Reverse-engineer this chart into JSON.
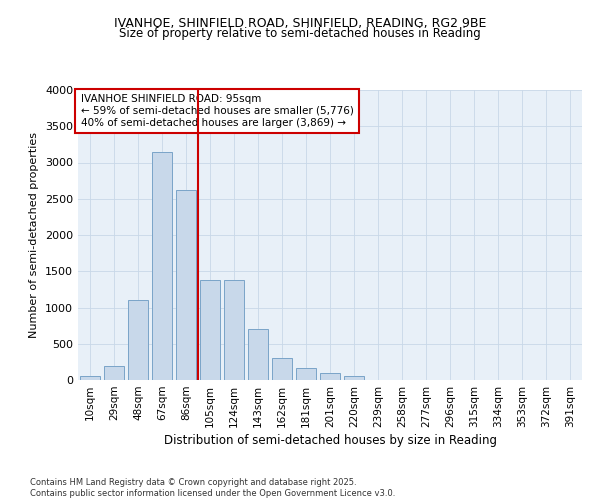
{
  "title_line1": "IVANHOE, SHINFIELD ROAD, SHINFIELD, READING, RG2 9BE",
  "title_line2": "Size of property relative to semi-detached houses in Reading",
  "xlabel": "Distribution of semi-detached houses by size in Reading",
  "ylabel": "Number of semi-detached properties",
  "bar_labels": [
    "10sqm",
    "29sqm",
    "48sqm",
    "67sqm",
    "86sqm",
    "105sqm",
    "124sqm",
    "143sqm",
    "162sqm",
    "181sqm",
    "201sqm",
    "220sqm",
    "239sqm",
    "258sqm",
    "277sqm",
    "296sqm",
    "315sqm",
    "334sqm",
    "353sqm",
    "372sqm",
    "391sqm"
  ],
  "bar_values": [
    50,
    200,
    1100,
    3150,
    2620,
    1380,
    1380,
    700,
    310,
    170,
    100,
    50,
    0,
    0,
    0,
    0,
    0,
    0,
    0,
    0,
    0
  ],
  "bar_color": "#c8d8ea",
  "bar_edge_color": "#7aa4c8",
  "vline_x": 4.5,
  "vline_color": "#cc0000",
  "property_size": "95sqm",
  "property_name": "IVANHOE SHINFIELD ROAD",
  "pct_smaller": "59%",
  "n_smaller": "5,776",
  "pct_larger": "40%",
  "n_larger": "3,869",
  "ylim": [
    0,
    4000
  ],
  "yticks": [
    0,
    500,
    1000,
    1500,
    2000,
    2500,
    3000,
    3500,
    4000
  ],
  "annotation_box_color": "#cc0000",
  "grid_color": "#c8d8e8",
  "bg_color": "#e8f0f8",
  "footer_line1": "Contains HM Land Registry data © Crown copyright and database right 2025.",
  "footer_line2": "Contains public sector information licensed under the Open Government Licence v3.0."
}
